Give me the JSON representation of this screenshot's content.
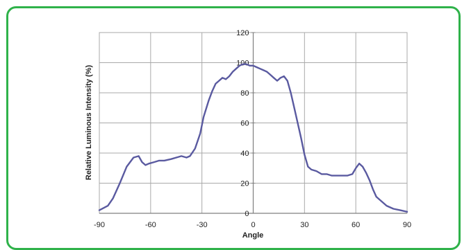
{
  "colors": {
    "frame": "#2fb24a",
    "line": "#5a5aa0",
    "grid": "#a9a9a9",
    "axis": "#7f7f7f"
  },
  "chart_data": {
    "type": "line",
    "title": "",
    "xlabel": "Angle",
    "ylabel": "Relative Luminous Intensity (%)",
    "xlim": [
      -90,
      90
    ],
    "ylim": [
      0,
      120
    ],
    "x_ticks": [
      -90,
      -60,
      -30,
      0,
      30,
      60,
      90
    ],
    "y_ticks": [
      0,
      20,
      40,
      60,
      80,
      100,
      120
    ],
    "grid": true,
    "series": [
      {
        "x": [
          -90,
          -85,
          -82,
          -78,
          -74,
          -70,
          -67,
          -65,
          -63,
          -61,
          -58,
          -55,
          -52,
          -48,
          -45,
          -42,
          -39,
          -37,
          -34,
          -31,
          -29,
          -26,
          -24,
          -22,
          -20,
          -18,
          -16,
          -14,
          -12,
          -10,
          -8,
          -6,
          -4,
          -2,
          0,
          2,
          4,
          6,
          8,
          10,
          12,
          14,
          16,
          18,
          20,
          22,
          24,
          26,
          28,
          30,
          32,
          34,
          37,
          40,
          43,
          46,
          49,
          52,
          55,
          58,
          60,
          62,
          64,
          66,
          68,
          70,
          72,
          75,
          78,
          82,
          86,
          90
        ],
        "y": [
          2,
          5,
          10,
          20,
          31,
          37,
          38,
          34,
          32,
          33,
          34,
          35,
          35,
          36,
          37,
          38,
          37,
          38,
          43,
          53,
          64,
          75,
          81,
          86,
          88,
          90,
          89,
          91,
          94,
          96,
          98,
          99,
          99,
          98,
          98,
          97,
          96,
          95,
          94,
          92,
          90,
          88,
          90,
          91,
          88,
          80,
          70,
          60,
          50,
          39,
          31,
          29,
          28,
          26,
          26,
          25,
          25,
          25,
          25,
          26,
          30,
          33,
          31,
          27,
          22,
          16,
          11,
          8,
          5,
          3,
          2,
          1
        ]
      }
    ]
  }
}
